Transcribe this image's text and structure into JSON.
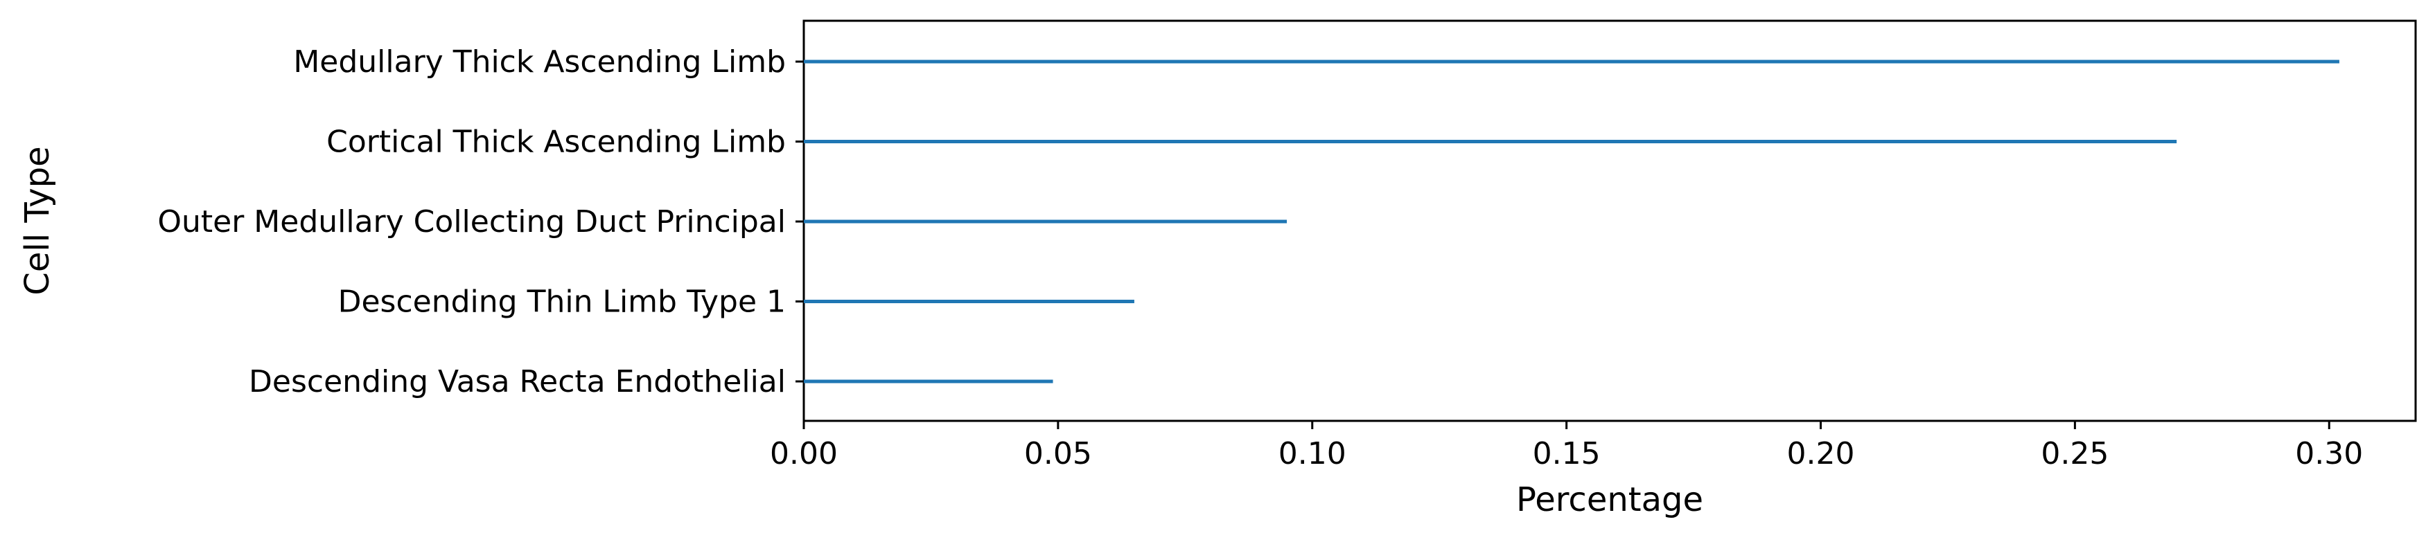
{
  "chart_data": {
    "type": "bar",
    "orientation": "horizontal",
    "style": "thin-line-bars",
    "categories": [
      "Medullary Thick Ascending Limb",
      "Cortical Thick Ascending Limb",
      "Outer Medullary Collecting Duct Principal",
      "Descending Thin Limb Type 1",
      "Descending Vasa Recta Endothelial"
    ],
    "values": [
      0.302,
      0.27,
      0.095,
      0.065,
      0.049
    ],
    "xlabel": "Percentage",
    "ylabel": "Cell Type",
    "xlim": [
      0,
      0.317
    ],
    "xticks": [
      "0.00",
      "0.05",
      "0.10",
      "0.15",
      "0.20",
      "0.25",
      "0.30"
    ],
    "grid": false,
    "legend": "none",
    "bar_color": "#1f77b4"
  }
}
